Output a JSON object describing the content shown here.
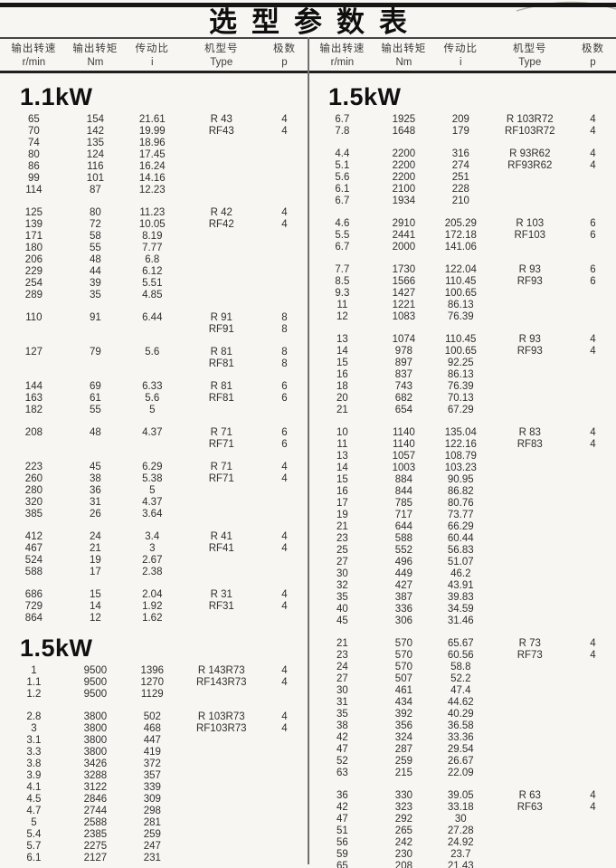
{
  "page": {
    "title": "选型参数表"
  },
  "table_header": {
    "columns": [
      {
        "label": "输出转速",
        "unit": "r/min"
      },
      {
        "label": "输出转矩",
        "unit": "Nm"
      },
      {
        "label": "传动比",
        "unit": "i"
      },
      {
        "label": "机型号",
        "unit": "Type"
      },
      {
        "label": "极数",
        "unit": "p"
      }
    ]
  },
  "columns": [
    {
      "name": "left",
      "blocks": [
        {
          "type": "title",
          "text": "1.1kW"
        },
        {
          "type": "group",
          "rows": [
            [
              "65",
              "154",
              "21.61",
              "R 43",
              "4"
            ],
            [
              "70",
              "142",
              "19.99",
              "RF43",
              "4"
            ],
            [
              "74",
              "135",
              "18.96",
              "",
              ""
            ],
            [
              "80",
              "124",
              "17.45",
              "",
              ""
            ],
            [
              "86",
              "116",
              "16.24",
              "",
              ""
            ],
            [
              "99",
              "101",
              "14.16",
              "",
              ""
            ],
            [
              "114",
              "87",
              "12.23",
              "",
              ""
            ]
          ]
        },
        {
          "type": "group",
          "rows": [
            [
              "125",
              "80",
              "11.23",
              "R 42",
              "4"
            ],
            [
              "139",
              "72",
              "10.05",
              "RF42",
              "4"
            ],
            [
              "171",
              "58",
              "8.19",
              "",
              ""
            ],
            [
              "180",
              "55",
              "7.77",
              "",
              ""
            ],
            [
              "206",
              "48",
              "6.8",
              "",
              ""
            ],
            [
              "229",
              "44",
              "6.12",
              "",
              ""
            ],
            [
              "254",
              "39",
              "5.51",
              "",
              ""
            ],
            [
              "289",
              "35",
              "4.85",
              "",
              ""
            ]
          ]
        },
        {
          "type": "group",
          "rows": [
            [
              "110",
              "91",
              "6.44",
              "R 91",
              "8"
            ],
            [
              "",
              "",
              "",
              "RF91",
              "8"
            ]
          ]
        },
        {
          "type": "group",
          "rows": [
            [
              "127",
              "79",
              "5.6",
              "R 81",
              "8"
            ],
            [
              "",
              "",
              "",
              "RF81",
              "8"
            ]
          ]
        },
        {
          "type": "group",
          "rows": [
            [
              "144",
              "69",
              "6.33",
              "R 81",
              "6"
            ],
            [
              "163",
              "61",
              "5.6",
              "RF81",
              "6"
            ],
            [
              "182",
              "55",
              "5",
              "",
              ""
            ]
          ]
        },
        {
          "type": "group",
          "rows": [
            [
              "208",
              "48",
              "4.37",
              "R 71",
              "6"
            ],
            [
              "",
              "",
              "",
              "RF71",
              "6"
            ]
          ]
        },
        {
          "type": "group",
          "rows": [
            [
              "223",
              "45",
              "6.29",
              "R 71",
              "4"
            ],
            [
              "260",
              "38",
              "5.38",
              "RF71",
              "4"
            ],
            [
              "280",
              "36",
              "5",
              "",
              ""
            ],
            [
              "320",
              "31",
              "4.37",
              "",
              ""
            ],
            [
              "385",
              "26",
              "3.64",
              "",
              ""
            ]
          ]
        },
        {
          "type": "group",
          "rows": [
            [
              "412",
              "24",
              "3.4",
              "R 41",
              "4"
            ],
            [
              "467",
              "21",
              "3",
              "RF41",
              "4"
            ],
            [
              "524",
              "19",
              "2.67",
              "",
              ""
            ],
            [
              "588",
              "17",
              "2.38",
              "",
              ""
            ]
          ]
        },
        {
          "type": "group",
          "rows": [
            [
              "686",
              "15",
              "2.04",
              "R 31",
              "4"
            ],
            [
              "729",
              "14",
              "1.92",
              "RF31",
              "4"
            ],
            [
              "864",
              "12",
              "1.62",
              "",
              ""
            ]
          ]
        },
        {
          "type": "title",
          "text": "1.5kW"
        },
        {
          "type": "group",
          "rows": [
            [
              "1",
              "9500",
              "1396",
              "R 143R73",
              "4"
            ],
            [
              "1.1",
              "9500",
              "1270",
              "RF143R73",
              "4"
            ],
            [
              "1.2",
              "9500",
              "1129",
              "",
              ""
            ]
          ]
        },
        {
          "type": "group",
          "rows": [
            [
              "2.8",
              "3800",
              "502",
              "R 103R73",
              "4"
            ],
            [
              "3",
              "3800",
              "468",
              "RF103R73",
              "4"
            ],
            [
              "3.1",
              "3800",
              "447",
              "",
              ""
            ],
            [
              "3.3",
              "3800",
              "419",
              "",
              ""
            ],
            [
              "3.8",
              "3426",
              "372",
              "",
              ""
            ],
            [
              "3.9",
              "3288",
              "357",
              "",
              ""
            ],
            [
              "4.1",
              "3122",
              "339",
              "",
              ""
            ],
            [
              "4.5",
              "2846",
              "309",
              "",
              ""
            ],
            [
              "4.7",
              "2744",
              "298",
              "",
              ""
            ],
            [
              "5",
              "2588",
              "281",
              "",
              ""
            ],
            [
              "5.4",
              "2385",
              "259",
              "",
              ""
            ],
            [
              "5.7",
              "2275",
              "247",
              "",
              ""
            ],
            [
              "6.1",
              "2127",
              "231",
              "",
              ""
            ]
          ]
        }
      ]
    },
    {
      "name": "right",
      "blocks": [
        {
          "type": "title",
          "text": "1.5kW"
        },
        {
          "type": "group",
          "rows": [
            [
              "6.7",
              "1925",
              "209",
              "R 103R72",
              "4"
            ],
            [
              "7.8",
              "1648",
              "179",
              "RF103R72",
              "4"
            ]
          ]
        },
        {
          "type": "group",
          "rows": [
            [
              "4.4",
              "2200",
              "316",
              "R 93R62",
              "4"
            ],
            [
              "5.1",
              "2200",
              "274",
              "RF93R62",
              "4"
            ],
            [
              "5.6",
              "2200",
              "251",
              "",
              ""
            ],
            [
              "6.1",
              "2100",
              "228",
              "",
              ""
            ],
            [
              "6.7",
              "1934",
              "210",
              "",
              ""
            ]
          ]
        },
        {
          "type": "group",
          "rows": [
            [
              "4.6",
              "2910",
              "205.29",
              "R 103",
              "6"
            ],
            [
              "5.5",
              "2441",
              "172.18",
              "RF103",
              "6"
            ],
            [
              "6.7",
              "2000",
              "141.06",
              "",
              ""
            ]
          ]
        },
        {
          "type": "group",
          "rows": [
            [
              "7.7",
              "1730",
              "122.04",
              "R 93",
              "6"
            ],
            [
              "8.5",
              "1566",
              "110.45",
              "RF93",
              "6"
            ],
            [
              "9.3",
              "1427",
              "100.65",
              "",
              ""
            ],
            [
              "11",
              "1221",
              "86.13",
              "",
              ""
            ],
            [
              "12",
              "1083",
              "76.39",
              "",
              ""
            ]
          ]
        },
        {
          "type": "group",
          "rows": [
            [
              "13",
              "1074",
              "110.45",
              "R 93",
              "4"
            ],
            [
              "14",
              "978",
              "100.65",
              "RF93",
              "4"
            ],
            [
              "15",
              "897",
              "92.25",
              "",
              ""
            ],
            [
              "16",
              "837",
              "86.13",
              "",
              ""
            ],
            [
              "18",
              "743",
              "76.39",
              "",
              ""
            ],
            [
              "20",
              "682",
              "70.13",
              "",
              ""
            ],
            [
              "21",
              "654",
              "67.29",
              "",
              ""
            ]
          ]
        },
        {
          "type": "group",
          "rows": [
            [
              "10",
              "1140",
              "135.04",
              "R 83",
              "4"
            ],
            [
              "11",
              "1140",
              "122.16",
              "RF83",
              "4"
            ],
            [
              "13",
              "1057",
              "108.79",
              "",
              ""
            ],
            [
              "14",
              "1003",
              "103.23",
              "",
              ""
            ],
            [
              "15",
              "884",
              "90.95",
              "",
              ""
            ],
            [
              "16",
              "844",
              "86.82",
              "",
              ""
            ],
            [
              "17",
              "785",
              "80.76",
              "",
              ""
            ],
            [
              "19",
              "717",
              "73.77",
              "",
              ""
            ],
            [
              "21",
              "644",
              "66.29",
              "",
              ""
            ],
            [
              "23",
              "588",
              "60.44",
              "",
              ""
            ],
            [
              "25",
              "552",
              "56.83",
              "",
              ""
            ],
            [
              "27",
              "496",
              "51.07",
              "",
              ""
            ],
            [
              "30",
              "449",
              "46.2",
              "",
              ""
            ],
            [
              "32",
              "427",
              "43.91",
              "",
              ""
            ],
            [
              "35",
              "387",
              "39.83",
              "",
              ""
            ],
            [
              "40",
              "336",
              "34.59",
              "",
              ""
            ],
            [
              "45",
              "306",
              "31.46",
              "",
              ""
            ]
          ]
        },
        {
          "type": "group",
          "rows": [
            [
              "21",
              "570",
              "65.67",
              "R 73",
              "4"
            ],
            [
              "23",
              "570",
              "60.56",
              "RF73",
              "4"
            ],
            [
              "24",
              "570",
              "58.8",
              "",
              ""
            ],
            [
              "27",
              "507",
              "52.2",
              "",
              ""
            ],
            [
              "30",
              "461",
              "47.4",
              "",
              ""
            ],
            [
              "31",
              "434",
              "44.62",
              "",
              ""
            ],
            [
              "35",
              "392",
              "40.29",
              "",
              ""
            ],
            [
              "38",
              "356",
              "36.58",
              "",
              ""
            ],
            [
              "42",
              "324",
              "33.36",
              "",
              ""
            ],
            [
              "47",
              "287",
              "29.54",
              "",
              ""
            ],
            [
              "52",
              "259",
              "26.67",
              "",
              ""
            ],
            [
              "63",
              "215",
              "22.09",
              "",
              ""
            ]
          ]
        },
        {
          "type": "group",
          "rows": [
            [
              "36",
              "330",
              "39.05",
              "R 63",
              "4"
            ],
            [
              "42",
              "323",
              "33.18",
              "RF63",
              "4"
            ],
            [
              "47",
              "292",
              "30",
              "",
              ""
            ],
            [
              "51",
              "265",
              "27.28",
              "",
              ""
            ],
            [
              "56",
              "242",
              "24.92",
              "",
              ""
            ],
            [
              "59",
              "230",
              "23.7",
              "",
              ""
            ],
            [
              "65",
              "208",
              "21.43",
              "",
              ""
            ]
          ]
        }
      ]
    }
  ]
}
